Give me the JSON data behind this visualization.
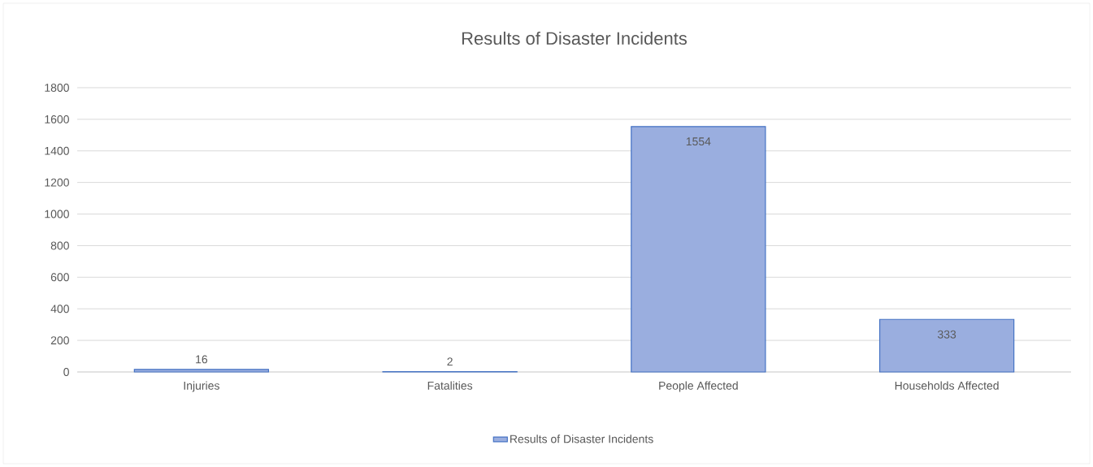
{
  "chart_data": {
    "type": "bar",
    "title": "Results of Disaster Incidents",
    "categories": [
      "Injuries",
      "Fatalities",
      "People Affected",
      "Households Affected"
    ],
    "series": [
      {
        "name": "Results of Disaster Incidents",
        "color": "#9aaedf",
        "values": [
          16,
          2,
          1554,
          333
        ]
      }
    ],
    "ylim": [
      0,
      1800
    ],
    "yticks": [
      0,
      200,
      400,
      600,
      800,
      1000,
      1200,
      1400,
      1600,
      1800
    ],
    "grid": "y",
    "legend": "bottom",
    "data_labels": true
  }
}
